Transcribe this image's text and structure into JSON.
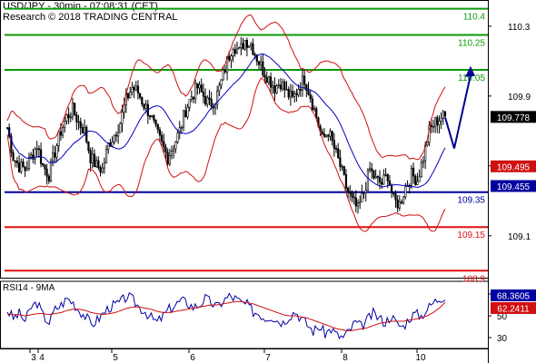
{
  "header": {
    "line1": "USD/JPY - 30min - 07:08:31 (CET)",
    "line2": "Research © 2018 TRADING CENTRAL"
  },
  "colors": {
    "resistance": "#0a9a0a",
    "pivot": "#0000a0",
    "support": "#e01010",
    "candles": "#000000",
    "bands": "#d01010",
    "ma": "#0000c0",
    "arrow": "#000090",
    "last_price_bg": "#000000",
    "rsi": "#0000a0",
    "rsi_ma": "#d01010"
  },
  "chart_data": [
    {
      "type": "candlestick",
      "instrument": "USD/JPY",
      "timeframe": "30min",
      "x_tick_labels": [
        "3",
        "4",
        "5",
        "6",
        "7",
        "8",
        "10"
      ],
      "y_tick_labels": [
        "110.3",
        "109.9",
        "109.5",
        "109.1"
      ],
      "ylim": [
        108.86,
        110.45
      ],
      "levels": [
        {
          "value": 110.4,
          "label": "110.4",
          "kind": "resistance"
        },
        {
          "value": 110.25,
          "label": "110.25",
          "kind": "resistance"
        },
        {
          "value": 110.05,
          "label": "110.05",
          "kind": "resistance"
        },
        {
          "value": 109.35,
          "label": "109.35",
          "kind": "pivot"
        },
        {
          "value": 109.15,
          "label": "109.15",
          "kind": "support"
        },
        {
          "value": 108.9,
          "label": "108.9",
          "kind": "support"
        }
      ],
      "price_tags": [
        {
          "value": 109.778,
          "label": "109.778",
          "kind": "last"
        },
        {
          "value": 109.495,
          "label": "109.495",
          "kind": "band"
        },
        {
          "value": 109.455,
          "label": "109.455",
          "kind": "ma"
        }
      ],
      "close_path": [
        109.72,
        109.55,
        109.5,
        109.48,
        109.55,
        109.62,
        109.5,
        109.45,
        109.58,
        109.7,
        109.78,
        109.82,
        109.75,
        109.7,
        109.55,
        109.5,
        109.48,
        109.62,
        109.68,
        109.75,
        109.88,
        109.95,
        109.92,
        109.85,
        109.8,
        109.7,
        109.62,
        109.55,
        109.62,
        109.7,
        109.82,
        109.9,
        109.95,
        109.9,
        109.85,
        109.88,
        109.98,
        110.1,
        110.2,
        110.15,
        110.22,
        110.2,
        110.12,
        110.05,
        110.0,
        109.95,
        109.98,
        109.92,
        109.88,
        109.95,
        110.0,
        109.9,
        109.78,
        109.65,
        109.7,
        109.6,
        109.5,
        109.38,
        109.3,
        109.25,
        109.35,
        109.48,
        109.42,
        109.4,
        109.45,
        109.3,
        109.28,
        109.38,
        109.45,
        109.42,
        109.55,
        109.7,
        109.75,
        109.78
      ],
      "projection": [
        109.778,
        109.6,
        110.02
      ]
    },
    {
      "type": "line",
      "title": "RSI14 - 9MA",
      "y_tick_labels": [
        "70",
        "50",
        "30"
      ],
      "ylim": [
        20,
        80
      ],
      "series": [
        {
          "name": "RSI14",
          "tag": "68.3605",
          "values": [
            55,
            48,
            52,
            45,
            58,
            62,
            50,
            44,
            56,
            60,
            66,
            62,
            55,
            50,
            42,
            46,
            52,
            58,
            60,
            63,
            68,
            64,
            58,
            54,
            48,
            44,
            50,
            56,
            60,
            64,
            62,
            58,
            60,
            66,
            62,
            58,
            64,
            68,
            66,
            62,
            60,
            54,
            52,
            48,
            50,
            46,
            44,
            50,
            54,
            48,
            42,
            36,
            40,
            34,
            38,
            32,
            30,
            36,
            44,
            40,
            46,
            52,
            48,
            44,
            50,
            42,
            40,
            48,
            52,
            50,
            56,
            62,
            66,
            68.36
          ]
        },
        {
          "name": "9MA",
          "tag": "62.2411",
          "values": [
            52,
            51,
            51,
            50,
            51,
            52,
            52,
            51,
            52,
            53,
            55,
            56,
            56,
            55,
            53,
            52,
            51,
            52,
            53,
            55,
            57,
            58,
            58,
            57,
            56,
            54,
            53,
            53,
            54,
            55,
            56,
            57,
            58,
            59,
            60,
            60,
            61,
            62,
            63,
            63,
            62,
            61,
            59,
            57,
            55,
            53,
            51,
            50,
            50,
            49,
            48,
            46,
            44,
            42,
            40,
            38,
            37,
            36,
            37,
            38,
            39,
            41,
            43,
            44,
            45,
            45,
            45,
            46,
            47,
            48,
            50,
            53,
            57,
            62.24
          ]
        }
      ]
    }
  ]
}
